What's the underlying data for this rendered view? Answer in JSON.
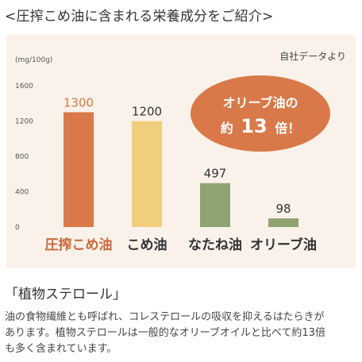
{
  "heading": "<圧搾こめ油に含まれる栄養成分をご紹介>",
  "chart_data": {
    "type": "bar",
    "unit_label": "(mg/100g)",
    "source_note": "自社データより",
    "categories": [
      "圧搾こめ油",
      "こめ油",
      "なたね油",
      "オリーブ油"
    ],
    "values": [
      1300,
      1200,
      497,
      98
    ],
    "value_labels": [
      "1300",
      "1200",
      "497",
      "98"
    ],
    "bar_colors": [
      "#d9794a",
      "#f1cd7e",
      "#8fa370",
      "#8fa370"
    ],
    "value_label_colors": [
      "#d9794a",
      "#333333",
      "#333333",
      "#333333"
    ],
    "category_label_colors": [
      "#c8683b",
      "#333333",
      "#333333",
      "#333333"
    ],
    "y_ticks": [
      "0",
      "400",
      "800",
      "1200",
      "1600"
    ],
    "ylim": [
      0,
      1600
    ],
    "grid": false,
    "callout": {
      "line1": "オリーブ油の",
      "line2_prefix": "約",
      "line2_number": "13",
      "line2_suffix": "倍！",
      "color": "#d9794a"
    }
  },
  "section_title": "「植物ステロール」",
  "body_lines": [
    "油の食物繊維とも呼ばれ、コレステロールの吸収を抑えるはたらきが",
    "あります。植物ステロールは一般的なオリーブオイルと比べて約13倍",
    "も多く含まれています。"
  ]
}
